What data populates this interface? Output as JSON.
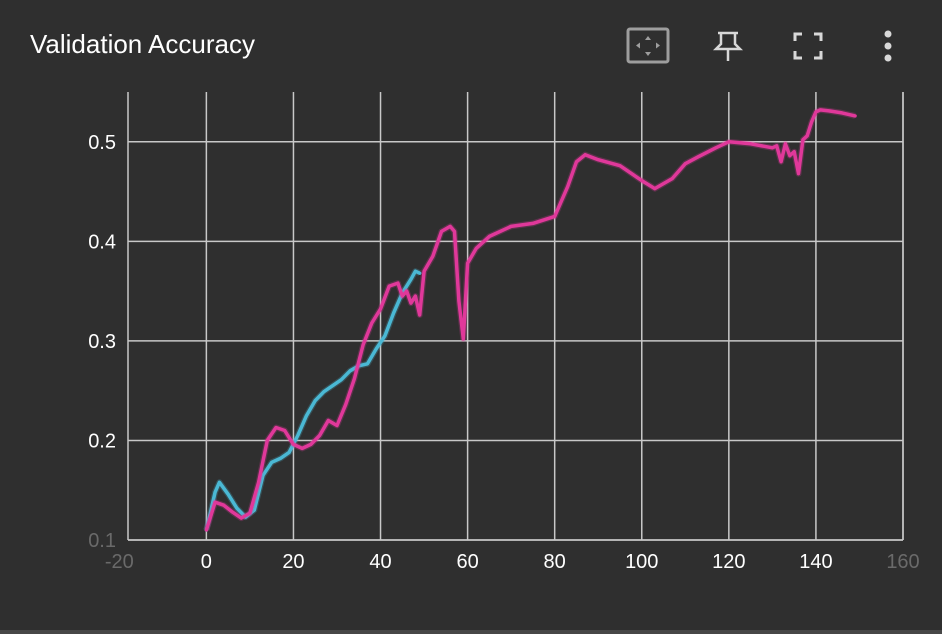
{
  "card": {
    "title": "Validation Accuracy",
    "icons": [
      "fit-domain-icon",
      "pin-icon",
      "fullscreen-icon",
      "more-vert-icon"
    ]
  },
  "colors": {
    "background": "#2f2f2f",
    "grid": "#c8c8c8",
    "series_cyan": "#4ab8d4",
    "series_magenta": "#e0389a"
  },
  "chart_data": {
    "type": "line",
    "title": "Validation Accuracy",
    "xlabel": "",
    "ylabel": "",
    "xlim": [
      -18,
      160
    ],
    "ylim": [
      0.1,
      0.55
    ],
    "grid": true,
    "x_ticks": [
      "-20",
      "0",
      "20",
      "40",
      "60",
      "80",
      "100",
      "120",
      "140",
      "160"
    ],
    "x_tick_values": [
      -20,
      0,
      20,
      40,
      60,
      80,
      100,
      120,
      140,
      160
    ],
    "y_ticks": [
      "0.1",
      "0.2",
      "0.3",
      "0.4",
      "0.5"
    ],
    "y_tick_values": [
      0.1,
      0.2,
      0.3,
      0.4,
      0.5
    ],
    "series": [
      {
        "color": "#4ab8d4",
        "x": [
          0,
          2,
          3,
          5,
          7,
          9,
          11,
          13,
          15,
          17,
          19,
          21,
          23,
          25,
          27,
          29,
          31,
          33,
          35,
          37,
          39,
          41,
          43,
          45,
          47,
          48,
          49
        ],
        "y": [
          0.11,
          0.148,
          0.158,
          0.146,
          0.132,
          0.123,
          0.13,
          0.165,
          0.178,
          0.182,
          0.188,
          0.205,
          0.225,
          0.24,
          0.249,
          0.255,
          0.261,
          0.27,
          0.275,
          0.277,
          0.292,
          0.305,
          0.328,
          0.348,
          0.362,
          0.37,
          0.368
        ]
      },
      {
        "color": "#e0389a",
        "x": [
          0,
          2,
          4,
          6,
          8,
          10,
          12,
          14,
          16,
          18,
          20,
          22,
          24,
          26,
          28,
          30,
          32,
          34,
          36,
          38,
          40,
          42,
          44,
          45,
          46,
          47,
          48,
          49,
          50,
          52,
          54,
          56,
          57,
          58,
          59,
          60,
          62,
          65,
          70,
          75,
          80,
          83,
          85,
          87,
          90,
          95,
          100,
          103,
          107,
          110,
          113,
          117,
          120,
          125,
          130,
          131,
          132,
          133,
          134,
          135,
          136,
          137,
          138,
          139,
          140,
          141,
          143,
          146,
          149
        ],
        "y": [
          0.11,
          0.138,
          0.135,
          0.128,
          0.122,
          0.127,
          0.158,
          0.2,
          0.213,
          0.21,
          0.196,
          0.192,
          0.196,
          0.205,
          0.22,
          0.215,
          0.236,
          0.262,
          0.296,
          0.318,
          0.332,
          0.355,
          0.358,
          0.345,
          0.35,
          0.338,
          0.345,
          0.326,
          0.37,
          0.385,
          0.41,
          0.415,
          0.41,
          0.34,
          0.302,
          0.378,
          0.393,
          0.405,
          0.415,
          0.418,
          0.425,
          0.455,
          0.48,
          0.487,
          0.482,
          0.476,
          0.461,
          0.453,
          0.463,
          0.478,
          0.485,
          0.494,
          0.5,
          0.498,
          0.494,
          0.496,
          0.48,
          0.498,
          0.486,
          0.49,
          0.468,
          0.502,
          0.506,
          0.52,
          0.53,
          0.532,
          0.531,
          0.529,
          0.526
        ]
      }
    ]
  }
}
